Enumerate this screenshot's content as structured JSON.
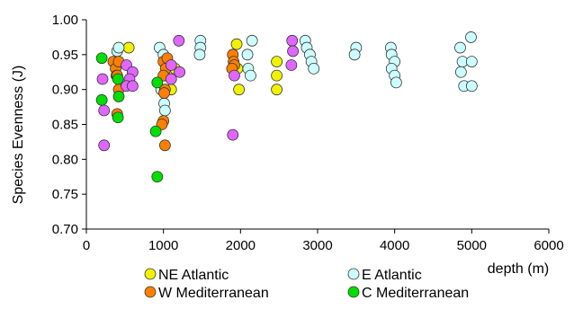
{
  "chart_data": {
    "type": "scatter",
    "title": "",
    "xlabel": "depth (m)",
    "ylabel": "Species Evenness (J)",
    "xlim": [
      0,
      6000
    ],
    "ylim": [
      0.7,
      1.0
    ],
    "x_ticks": [
      "0",
      "1000",
      "2000",
      "3000",
      "4000",
      "5000",
      "6000"
    ],
    "y_ticks": [
      "0.70",
      "0.75",
      "0.80",
      "0.85",
      "0.90",
      "0.95",
      "1.00"
    ],
    "grid": false,
    "legend_position": "bottom",
    "series": [
      {
        "name": "NE Atlantic",
        "color": "#f2f200",
        "points": [
          [
            550,
            0.96
          ],
          [
            1150,
            0.93
          ],
          [
            1100,
            0.9
          ],
          [
            1950,
            0.965
          ],
          [
            1960,
            0.93
          ],
          [
            1980,
            0.9
          ],
          [
            2470,
            0.94
          ],
          [
            2470,
            0.92
          ],
          [
            2470,
            0.9
          ]
        ]
      },
      {
        "name": "E Atlantic",
        "color": "#ccffff",
        "points": [
          [
            400,
            0.955
          ],
          [
            420,
            0.96
          ],
          [
            950,
            0.96
          ],
          [
            1000,
            0.95
          ],
          [
            1020,
            0.92
          ],
          [
            1010,
            0.88
          ],
          [
            1020,
            0.87
          ],
          [
            970,
            0.9
          ],
          [
            1480,
            0.97
          ],
          [
            1480,
            0.96
          ],
          [
            1470,
            0.95
          ],
          [
            2090,
            0.95
          ],
          [
            2150,
            0.97
          ],
          [
            2100,
            0.93
          ],
          [
            2130,
            0.92
          ],
          [
            2840,
            0.97
          ],
          [
            2860,
            0.96
          ],
          [
            2900,
            0.95
          ],
          [
            2920,
            0.94
          ],
          [
            2950,
            0.93
          ],
          [
            3500,
            0.96
          ],
          [
            3480,
            0.95
          ],
          [
            3950,
            0.96
          ],
          [
            3960,
            0.95
          ],
          [
            4000,
            0.94
          ],
          [
            3960,
            0.93
          ],
          [
            4000,
            0.92
          ],
          [
            4020,
            0.91
          ],
          [
            4850,
            0.96
          ],
          [
            4880,
            0.94
          ],
          [
            4860,
            0.925
          ],
          [
            4900,
            0.905
          ],
          [
            4990,
            0.975
          ],
          [
            5000,
            0.94
          ],
          [
            5000,
            0.905
          ]
        ]
      },
      {
        "name": "W Mediterranean",
        "color": "#ff8000",
        "points": [
          [
            350,
            0.94
          ],
          [
            380,
            0.93
          ],
          [
            390,
            0.92
          ],
          [
            420,
            0.94
          ],
          [
            400,
            0.92
          ],
          [
            420,
            0.9
          ],
          [
            400,
            0.865
          ],
          [
            1000,
            0.94
          ],
          [
            1050,
            0.945
          ],
          [
            1030,
            0.93
          ],
          [
            1000,
            0.92
          ],
          [
            1020,
            0.9
          ],
          [
            1010,
            0.895
          ],
          [
            1000,
            0.855
          ],
          [
            980,
            0.85
          ],
          [
            1020,
            0.82
          ],
          [
            1900,
            0.95
          ],
          [
            1910,
            0.94
          ],
          [
            1920,
            0.935
          ],
          [
            1890,
            0.93
          ]
        ]
      },
      {
        "name": "C Mediterranean",
        "color": "#00e000",
        "points": [
          [
            200,
            0.945
          ],
          [
            200,
            0.885
          ],
          [
            410,
            0.915
          ],
          [
            420,
            0.89
          ],
          [
            410,
            0.86
          ],
          [
            920,
            0.91
          ],
          [
            900,
            0.84
          ],
          [
            920,
            0.775
          ]
        ]
      },
      {
        "name": "",
        "color": "#e066ff",
        "points": [
          [
            210,
            0.915
          ],
          [
            230,
            0.87
          ],
          [
            230,
            0.82
          ],
          [
            520,
            0.935
          ],
          [
            600,
            0.925
          ],
          [
            560,
            0.915
          ],
          [
            520,
            0.905
          ],
          [
            600,
            0.905
          ],
          [
            1100,
            0.935
          ],
          [
            1100,
            0.915
          ],
          [
            1200,
            0.97
          ],
          [
            1210,
            0.925
          ],
          [
            1900,
            0.835
          ],
          [
            1920,
            0.92
          ],
          [
            2670,
            0.97
          ],
          [
            2680,
            0.955
          ],
          [
            2660,
            0.935
          ]
        ]
      }
    ]
  }
}
